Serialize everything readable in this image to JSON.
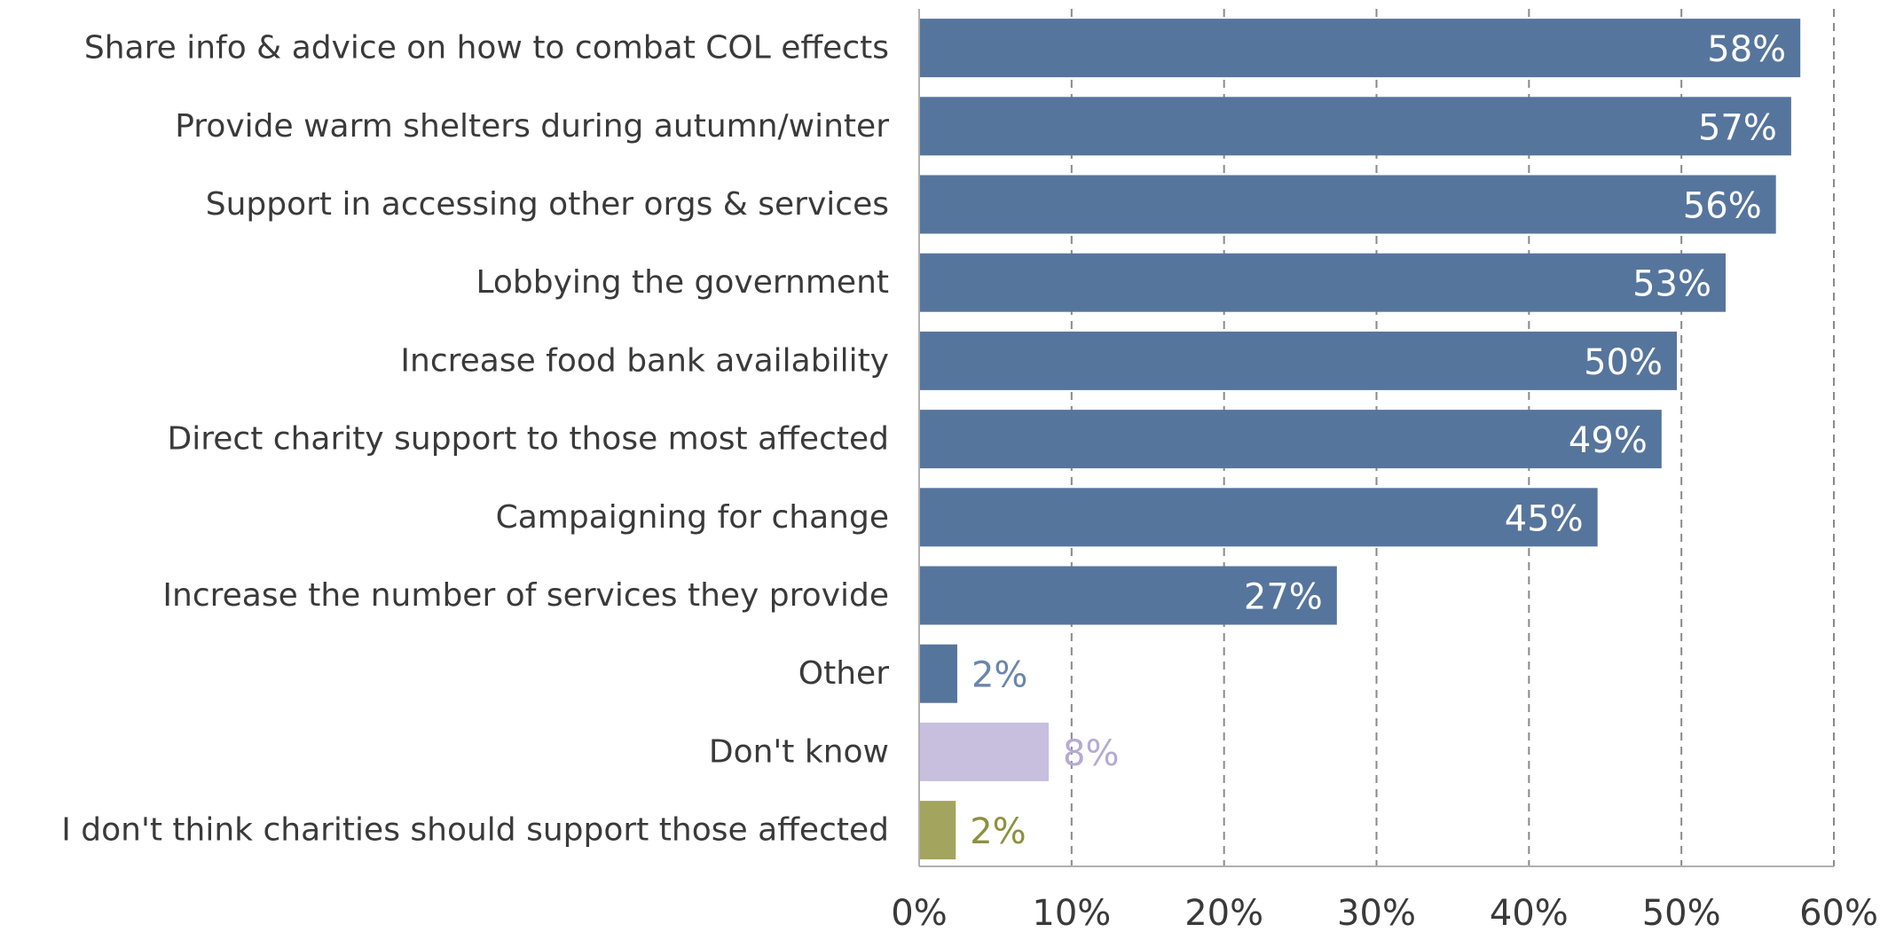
{
  "chart_data": {
    "type": "bar",
    "orientation": "horizontal",
    "categories": [
      "Share info & advice on how to combat COL effects",
      "Provide warm shelters during autumn/winter",
      "Support in accessing other orgs & services",
      "Lobbying the government",
      "Increase food bank availability",
      "Direct charity support to those most affected",
      "Campaigning for change",
      "Increase the number of services they provide",
      "Other",
      "Don't know",
      "I don't think charities should support those affected"
    ],
    "values": [
      57.8,
      57.2,
      56.2,
      52.9,
      49.7,
      48.7,
      44.5,
      27.4,
      2.5,
      8.5,
      2.4
    ],
    "value_labels": [
      "58%",
      "57%",
      "56%",
      "53%",
      "50%",
      "49%",
      "45%",
      "27%",
      "2%",
      "8%",
      "2%"
    ],
    "bar_colors": [
      "#56759d",
      "#56759d",
      "#56759d",
      "#56759d",
      "#56759d",
      "#56759d",
      "#56759d",
      "#56759d",
      "#56759d",
      "#c8bedd",
      "#a3a45e"
    ],
    "label_colors": [
      "#ffffff",
      "#ffffff",
      "#ffffff",
      "#ffffff",
      "#ffffff",
      "#ffffff",
      "#ffffff",
      "#ffffff",
      "#6a86ab",
      "#b5aad5",
      "#8e9040"
    ],
    "label_inside": [
      true,
      true,
      true,
      true,
      true,
      true,
      true,
      true,
      false,
      false,
      false
    ],
    "xlim": [
      0,
      60
    ],
    "xticks": [
      0,
      10,
      20,
      30,
      40,
      50,
      60
    ],
    "xtick_labels": [
      "0%",
      "10%",
      "20%",
      "30%",
      "40%",
      "50%",
      "60%"
    ],
    "grid": "vertical-dashed",
    "legend": "none"
  }
}
